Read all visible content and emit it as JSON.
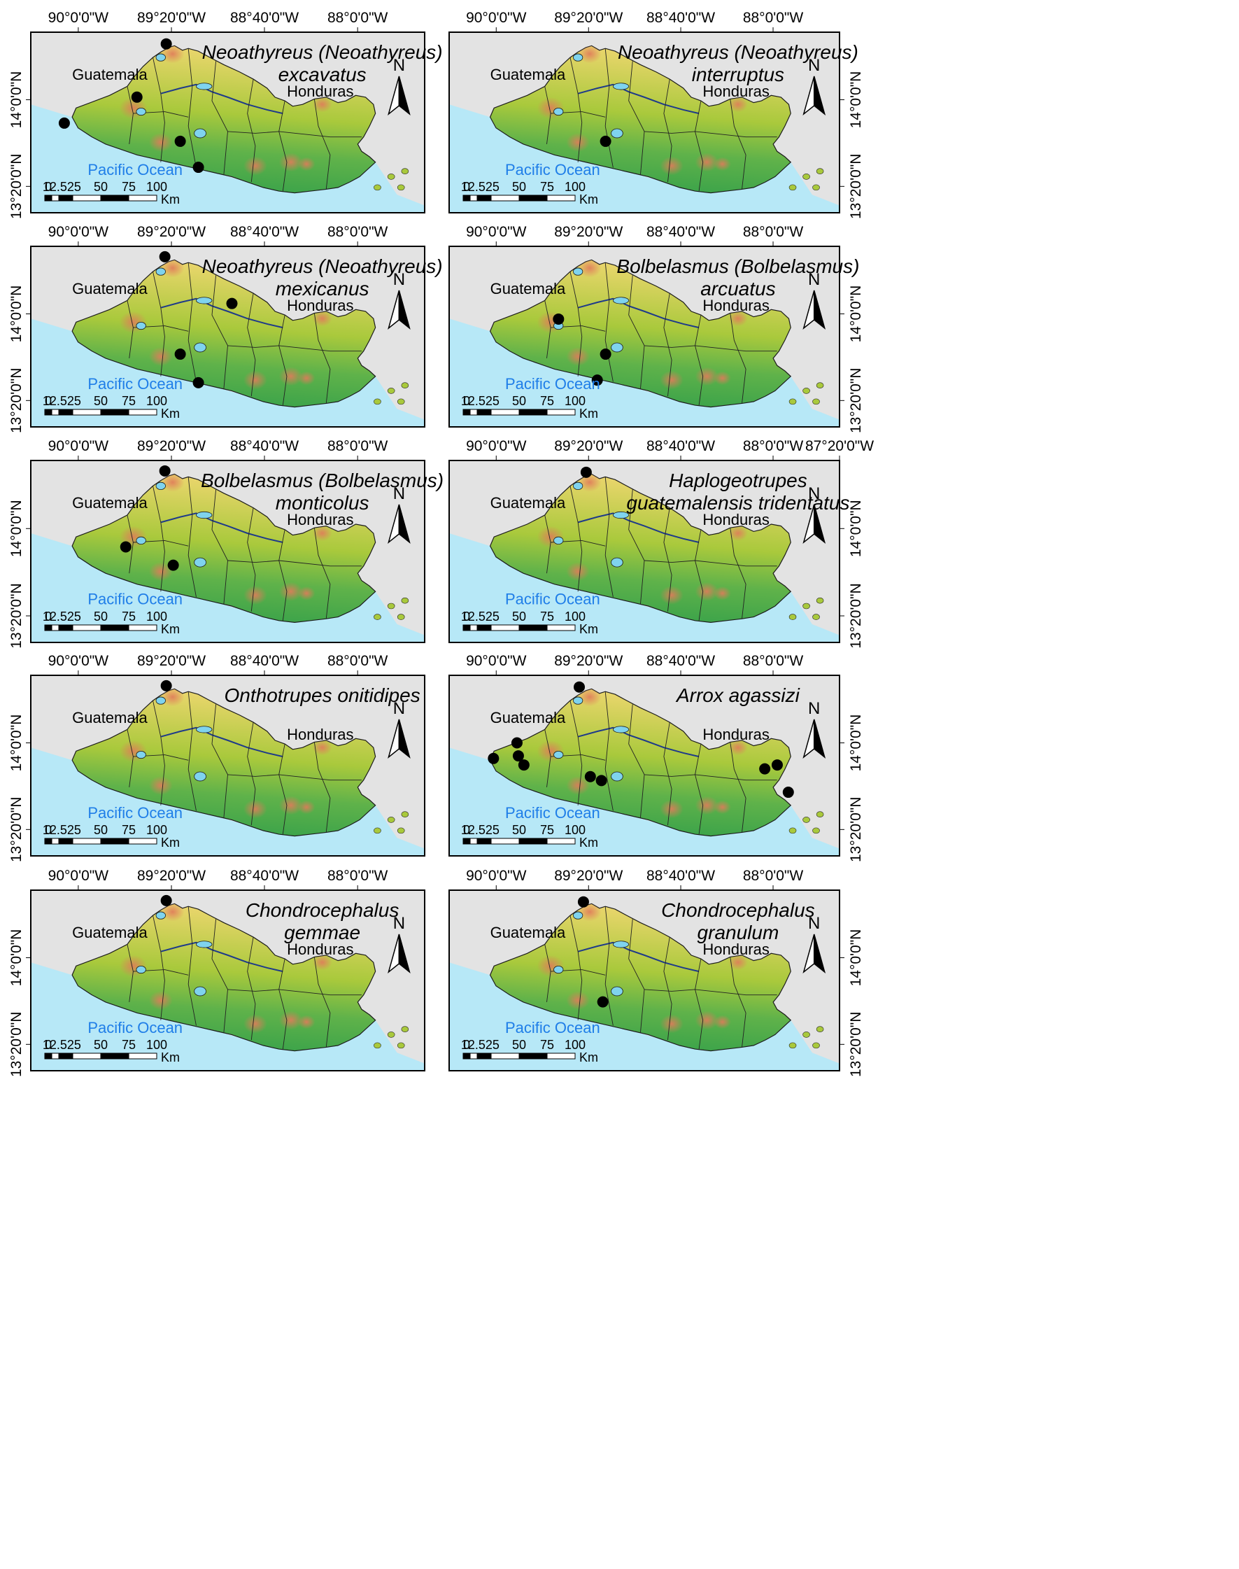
{
  "panels": [
    {
      "species_line1": "Neoathyreus (Neoathyreus)",
      "species_line2": "excavatus",
      "side": "left",
      "lon_ticks": [
        "90°0'0\"W",
        "89°20'0\"W",
        "88°40'0\"W",
        "88°0'0\"W"
      ],
      "lat_ticks": [
        "14°0'0\"N",
        "13°20'0\"N"
      ],
      "records": [
        {
          "lon": -89.37,
          "lat": 14.43
        },
        {
          "lon": -89.58,
          "lat": 14.02
        },
        {
          "lon": -90.1,
          "lat": 13.82
        },
        {
          "lon": -89.27,
          "lat": 13.68
        },
        {
          "lon": -89.14,
          "lat": 13.48
        }
      ]
    },
    {
      "species_line1": "Neoathyreus (Neoathyreus)",
      "species_line2": "interruptus",
      "side": "right",
      "lon_ticks": [
        "90°0'0\"W",
        "89°20'0\"W",
        "88°40'0\"W",
        "88°0'0\"W"
      ],
      "lat_ticks": [
        "14°0'0\"N",
        "13°20'0\"N"
      ],
      "records": [
        {
          "lon": -89.21,
          "lat": 13.68
        }
      ]
    },
    {
      "species_line1": "Neoathyreus (Neoathyreus)",
      "species_line2": "mexicanus",
      "side": "left",
      "lon_ticks": [
        "90°0'0\"W",
        "89°20'0\"W",
        "88°40'0\"W",
        "88°0'0\"W"
      ],
      "lat_ticks": [
        "14°0'0\"N",
        "13°20'0\"N"
      ],
      "records": [
        {
          "lon": -89.38,
          "lat": 14.44
        },
        {
          "lon": -88.9,
          "lat": 14.08
        },
        {
          "lon": -89.27,
          "lat": 13.69
        },
        {
          "lon": -89.14,
          "lat": 13.47
        }
      ]
    },
    {
      "species_line1": "Bolbelasmus (Bolbelasmus)",
      "species_line2": "arcuatus",
      "side": "right",
      "lon_ticks": [
        "90°0'0\"W",
        "89°20'0\"W",
        "88°40'0\"W",
        "88°0'0\"W"
      ],
      "lat_ticks": [
        "14°0'0\"N",
        "13°20'0\"N"
      ],
      "records": [
        {
          "lon": -89.55,
          "lat": 13.96
        },
        {
          "lon": -89.21,
          "lat": 13.69
        },
        {
          "lon": -89.27,
          "lat": 13.49
        }
      ]
    },
    {
      "species_line1": "Bolbelasmus (Bolbelasmus)",
      "species_line2": "monticolus",
      "side": "left",
      "lon_ticks": [
        "90°0'0\"W",
        "89°20'0\"W",
        "88°40'0\"W",
        "88°0'0\"W"
      ],
      "lat_ticks": [
        "14°0'0\"N",
        "13°20'0\"N"
      ],
      "records": [
        {
          "lon": -89.38,
          "lat": 14.44
        },
        {
          "lon": -89.66,
          "lat": 13.86
        },
        {
          "lon": -89.32,
          "lat": 13.72
        }
      ]
    },
    {
      "species_line1": "Haplogeotrupes",
      "species_line2": "guatemalensis tridentatus",
      "side": "right",
      "lon_ticks": [
        "90°0'0\"W",
        "89°20'0\"W",
        "88°40'0\"W",
        "88°0'0\"W",
        "87°20'0\"W"
      ],
      "lat_ticks": [
        "14°0'0\"N",
        "13°20'0\"N"
      ],
      "records": [
        {
          "lon": -89.35,
          "lat": 14.43
        }
      ]
    },
    {
      "species_line1": "Onthotrupes onitidipes",
      "species_line2": "",
      "side": "left",
      "lon_ticks": [
        "90°0'0\"W",
        "89°20'0\"W",
        "88°40'0\"W",
        "88°0'0\"W"
      ],
      "lat_ticks": [
        "14°0'0\"N",
        "13°20'0\"N"
      ],
      "records": [
        {
          "lon": -89.37,
          "lat": 14.44
        }
      ]
    },
    {
      "species_line1": "Arrox agassizi",
      "species_line2": "",
      "side": "right",
      "lon_ticks": [
        "90°0'0\"W",
        "89°20'0\"W",
        "88°40'0\"W",
        "88°0'0\"W"
      ],
      "lat_ticks": [
        "14°0'0\"N",
        "13°20'0\"N"
      ],
      "records": [
        {
          "lon": -89.4,
          "lat": 14.43
        },
        {
          "lon": -89.85,
          "lat": 14.0
        },
        {
          "lon": -90.02,
          "lat": 13.88
        },
        {
          "lon": -89.84,
          "lat": 13.9
        },
        {
          "lon": -89.8,
          "lat": 13.83
        },
        {
          "lon": -89.32,
          "lat": 13.74
        },
        {
          "lon": -89.24,
          "lat": 13.71
        },
        {
          "lon": -88.06,
          "lat": 13.8
        },
        {
          "lon": -87.97,
          "lat": 13.83
        },
        {
          "lon": -87.89,
          "lat": 13.62
        }
      ]
    },
    {
      "species_line1": "Chondrocephalus",
      "species_line2": "gemmae",
      "side": "left",
      "lon_ticks": [
        "90°0'0\"W",
        "89°20'0\"W",
        "88°40'0\"W",
        "88°0'0\"W"
      ],
      "lat_ticks": [
        "14°0'0\"N",
        "13°20'0\"N"
      ],
      "records": [
        {
          "lon": -89.37,
          "lat": 14.44
        }
      ]
    },
    {
      "species_line1": "Chondrocephalus",
      "species_line2": "granulum",
      "side": "right",
      "lon_ticks": [
        "90°0'0\"W",
        "89°20'0\"W",
        "88°40'0\"W",
        "88°0'0\"W"
      ],
      "lat_ticks": [
        "14°0'0\"N",
        "13°20'0\"N"
      ],
      "records": [
        {
          "lon": -89.37,
          "lat": 14.43
        },
        {
          "lon": -89.23,
          "lat": 13.66
        }
      ]
    }
  ],
  "labels": {
    "guatemala": "Guatemala",
    "honduras": "Honduras",
    "pacific": "Pacific Ocean",
    "north": "N",
    "km": "Km",
    "scale_values": [
      "0",
      "12.525",
      "50",
      "75",
      "100"
    ]
  },
  "colors": {
    "ocean": "#b7e8f7",
    "land_low": "#2f9e4a",
    "land_mid": "#a9c93c",
    "land_high": "#e7d56a",
    "peak": "#e07b5a",
    "neighbors": "#e3e3e3",
    "lake": "#7fd3ee",
    "dot": "#000000"
  },
  "icons": {
    "north_arrow": "north-arrow-icon"
  }
}
